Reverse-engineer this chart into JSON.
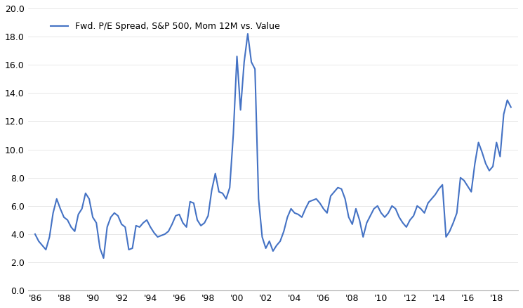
{
  "title": "Fwd. P/E Spread, S&P 500, Mom 12M vs. Value",
  "line_color": "#4472C4",
  "line_width": 1.5,
  "background_color": "#ffffff",
  "ylim": [
    0.0,
    20.0
  ],
  "yticks": [
    0.0,
    2.0,
    4.0,
    6.0,
    8.0,
    10.0,
    12.0,
    14.0,
    16.0,
    18.0,
    20.0
  ],
  "xtick_labels": [
    "'86",
    "'88",
    "'90",
    "'92",
    "'94",
    "'96",
    "'98",
    "'00",
    "'02",
    "'04",
    "'06",
    "'08",
    "'10",
    "'12",
    "'14",
    "'16",
    "'18"
  ],
  "xtick_years": [
    1986,
    1988,
    1990,
    1992,
    1994,
    1996,
    1998,
    2000,
    2002,
    2004,
    2006,
    2008,
    2010,
    2012,
    2014,
    2016,
    2018
  ],
  "data": {
    "dates": [
      1986.0,
      1986.25,
      1986.5,
      1986.75,
      1987.0,
      1987.25,
      1987.5,
      1987.75,
      1988.0,
      1988.25,
      1988.5,
      1988.75,
      1989.0,
      1989.25,
      1989.5,
      1989.75,
      1990.0,
      1990.25,
      1990.5,
      1990.75,
      1991.0,
      1991.25,
      1991.5,
      1991.75,
      1992.0,
      1992.25,
      1992.5,
      1992.75,
      1993.0,
      1993.25,
      1993.5,
      1993.75,
      1994.0,
      1994.25,
      1994.5,
      1994.75,
      1995.0,
      1995.25,
      1995.5,
      1995.75,
      1996.0,
      1996.25,
      1996.5,
      1996.75,
      1997.0,
      1997.25,
      1997.5,
      1997.75,
      1998.0,
      1998.25,
      1998.5,
      1998.75,
      1999.0,
      1999.25,
      1999.5,
      1999.75,
      2000.0,
      2000.25,
      2000.5,
      2000.75,
      2001.0,
      2001.25,
      2001.5,
      2001.75,
      2002.0,
      2002.25,
      2002.5,
      2002.75,
      2003.0,
      2003.25,
      2003.5,
      2003.75,
      2004.0,
      2004.25,
      2004.5,
      2004.75,
      2005.0,
      2005.25,
      2005.5,
      2005.75,
      2006.0,
      2006.25,
      2006.5,
      2006.75,
      2007.0,
      2007.25,
      2007.5,
      2007.75,
      2008.0,
      2008.25,
      2008.5,
      2008.75,
      2009.0,
      2009.25,
      2009.5,
      2009.75,
      2010.0,
      2010.25,
      2010.5,
      2010.75,
      2011.0,
      2011.25,
      2011.5,
      2011.75,
      2012.0,
      2012.25,
      2012.5,
      2012.75,
      2013.0,
      2013.25,
      2013.5,
      2013.75,
      2014.0,
      2014.25,
      2014.5,
      2014.75,
      2015.0,
      2015.25,
      2015.5,
      2015.75,
      2016.0,
      2016.25,
      2016.5,
      2016.75,
      2017.0,
      2017.25,
      2017.5,
      2017.75,
      2018.0,
      2018.25,
      2018.5,
      2018.75,
      2019.0
    ],
    "values": [
      4.0,
      3.5,
      3.2,
      2.9,
      3.8,
      5.5,
      6.5,
      5.8,
      5.2,
      5.0,
      4.5,
      4.2,
      5.4,
      5.8,
      6.9,
      6.5,
      5.2,
      4.8,
      3.0,
      2.3,
      4.5,
      5.2,
      5.5,
      5.3,
      4.7,
      4.5,
      2.9,
      3.0,
      4.6,
      4.5,
      4.8,
      5.0,
      4.5,
      4.1,
      3.8,
      3.9,
      4.0,
      4.2,
      4.7,
      5.3,
      5.4,
      4.8,
      4.5,
      6.3,
      6.2,
      5.0,
      4.6,
      4.8,
      5.3,
      7.1,
      8.3,
      7.0,
      6.9,
      6.5,
      7.3,
      11.1,
      16.6,
      12.8,
      16.2,
      18.2,
      16.2,
      15.7,
      6.5,
      3.8,
      3.0,
      3.5,
      2.8,
      3.2,
      3.5,
      4.2,
      5.2,
      5.8,
      5.5,
      5.4,
      5.2,
      5.8,
      6.3,
      6.4,
      6.5,
      6.2,
      5.8,
      5.5,
      6.7,
      7.0,
      7.3,
      7.2,
      6.5,
      5.2,
      4.7,
      5.8,
      5.0,
      3.8,
      4.8,
      5.3,
      5.8,
      6.0,
      5.5,
      5.2,
      5.5,
      6.0,
      5.8,
      5.2,
      4.8,
      4.5,
      5.0,
      5.3,
      6.0,
      5.8,
      5.5,
      6.2,
      6.5,
      6.8,
      7.2,
      7.5,
      3.8,
      4.2,
      4.8,
      5.5,
      8.0,
      7.8,
      7.4,
      7.0,
      9.0,
      10.5,
      9.8,
      9.0,
      8.5,
      8.8,
      10.5,
      9.5,
      12.5,
      13.5,
      13.0
    ]
  }
}
